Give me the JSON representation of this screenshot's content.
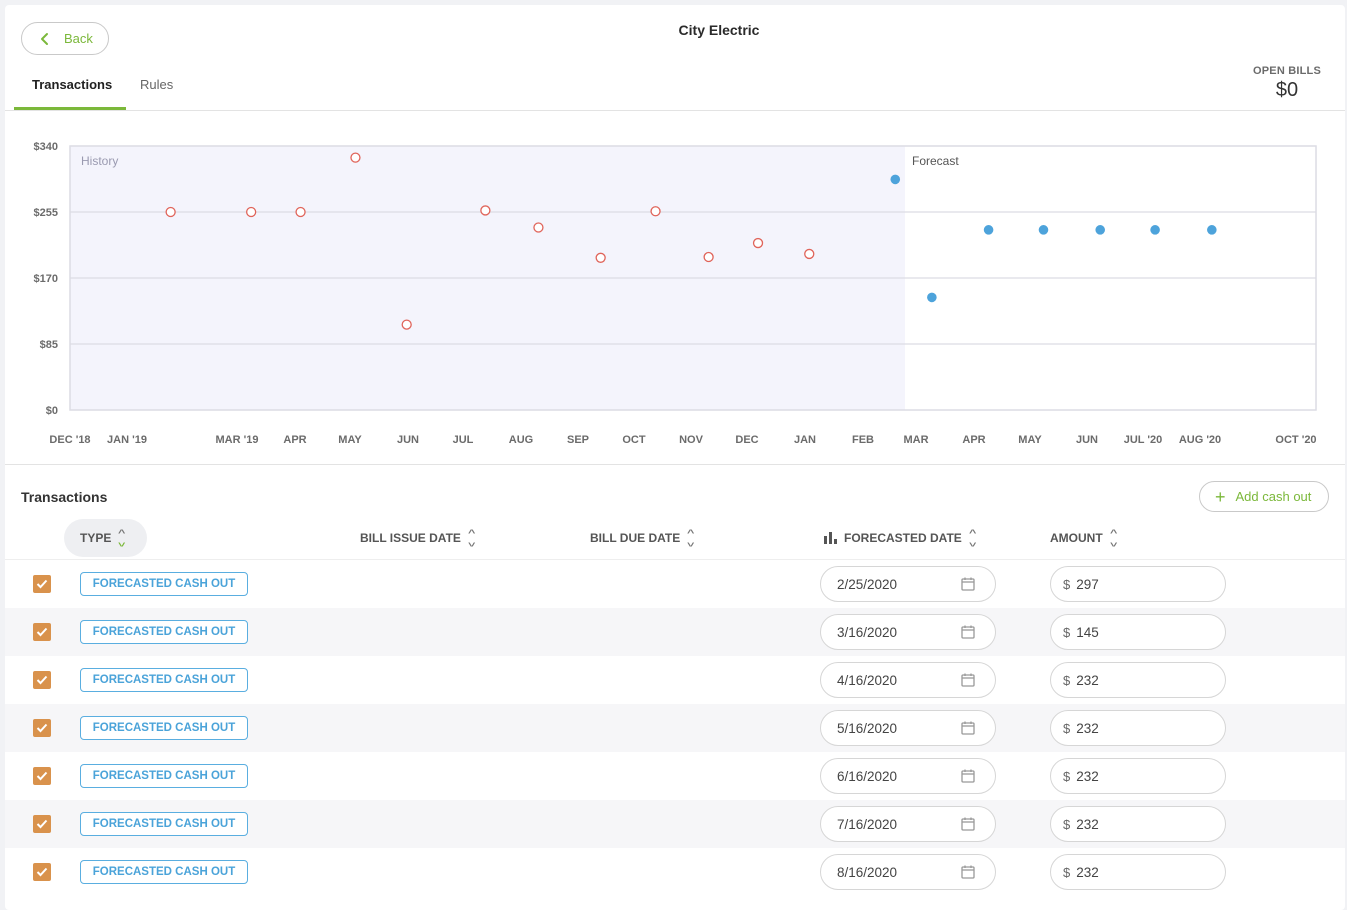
{
  "header": {
    "back_label": "Back",
    "title": "City Electric",
    "tabs": [
      {
        "label": "Transactions",
        "active": true
      },
      {
        "label": "Rules",
        "active": false
      }
    ],
    "open_bills_label": "OPEN BILLS",
    "open_bills_value": "$0"
  },
  "chart_data": {
    "type": "scatter",
    "region_labels": {
      "history": "History",
      "forecast": "Forecast"
    },
    "y_ticks": [
      "$340",
      "$255",
      "$170",
      "$85",
      "$0"
    ],
    "x_ticks": [
      "DEC '18",
      "JAN '19",
      "MAR '19",
      "APR",
      "MAY",
      "JUN",
      "JUL",
      "AUG",
      "SEP",
      "OCT",
      "NOV",
      "DEC",
      "JAN",
      "FEB",
      "MAR",
      "APR",
      "MAY",
      "JUN",
      "JUL '20",
      "AUG '20",
      "OCT '20"
    ],
    "ylim": [
      0,
      340
    ],
    "grid": true,
    "series": [
      {
        "name": "History",
        "style": "hollow",
        "color": "#e0645a",
        "points": [
          {
            "x": "2019-01-25",
            "y": 255
          },
          {
            "x": "2019-03-10",
            "y": 255
          },
          {
            "x": "2019-04-06",
            "y": 255
          },
          {
            "x": "2019-05-06",
            "y": 325
          },
          {
            "x": "2019-06-03",
            "y": 110
          },
          {
            "x": "2019-07-16",
            "y": 257
          },
          {
            "x": "2019-08-14",
            "y": 235
          },
          {
            "x": "2019-09-17",
            "y": 196
          },
          {
            "x": "2019-10-17",
            "y": 256
          },
          {
            "x": "2019-11-15",
            "y": 197
          },
          {
            "x": "2019-12-12",
            "y": 215
          },
          {
            "x": "2020-01-09",
            "y": 201
          }
        ]
      },
      {
        "name": "Forecast",
        "style": "filled",
        "color": "#4da3db",
        "points": [
          {
            "x": "2020-02-25",
            "y": 297
          },
          {
            "x": "2020-03-16",
            "y": 145
          },
          {
            "x": "2020-04-16",
            "y": 232
          },
          {
            "x": "2020-05-16",
            "y": 232
          },
          {
            "x": "2020-06-16",
            "y": 232
          },
          {
            "x": "2020-07-16",
            "y": 232
          },
          {
            "x": "2020-08-16",
            "y": 232
          }
        ]
      }
    ],
    "colors": {
      "history_bg": "#f4f4fc",
      "grid": "#dcdce4",
      "axis_text": "#6b6b6b"
    }
  },
  "transactions": {
    "title": "Transactions",
    "add_label": "Add cash out",
    "columns": {
      "type": "TYPE",
      "bill_issue_date": "BILL ISSUE DATE",
      "bill_due_date": "BILL DUE DATE",
      "forecasted_date": "FORECASTED DATE",
      "amount": "AMOUNT"
    },
    "currency": "$",
    "rows": [
      {
        "type": "FORECASTED CASH OUT",
        "forecasted_date": "2/25/2020",
        "amount": "297",
        "checked": true
      },
      {
        "type": "FORECASTED CASH OUT",
        "forecasted_date": "3/16/2020",
        "amount": "145",
        "checked": true
      },
      {
        "type": "FORECASTED CASH OUT",
        "forecasted_date": "4/16/2020",
        "amount": "232",
        "checked": true
      },
      {
        "type": "FORECASTED CASH OUT",
        "forecasted_date": "5/16/2020",
        "amount": "232",
        "checked": true
      },
      {
        "type": "FORECASTED CASH OUT",
        "forecasted_date": "6/16/2020",
        "amount": "232",
        "checked": true
      },
      {
        "type": "FORECASTED CASH OUT",
        "forecasted_date": "7/16/2020",
        "amount": "232",
        "checked": true
      },
      {
        "type": "FORECASTED CASH OUT",
        "forecasted_date": "8/16/2020",
        "amount": "232",
        "checked": true
      }
    ]
  },
  "colors": {
    "accent": "#7bb83a",
    "checkbox": "#d9924c",
    "badge": "#4aa3d9"
  }
}
